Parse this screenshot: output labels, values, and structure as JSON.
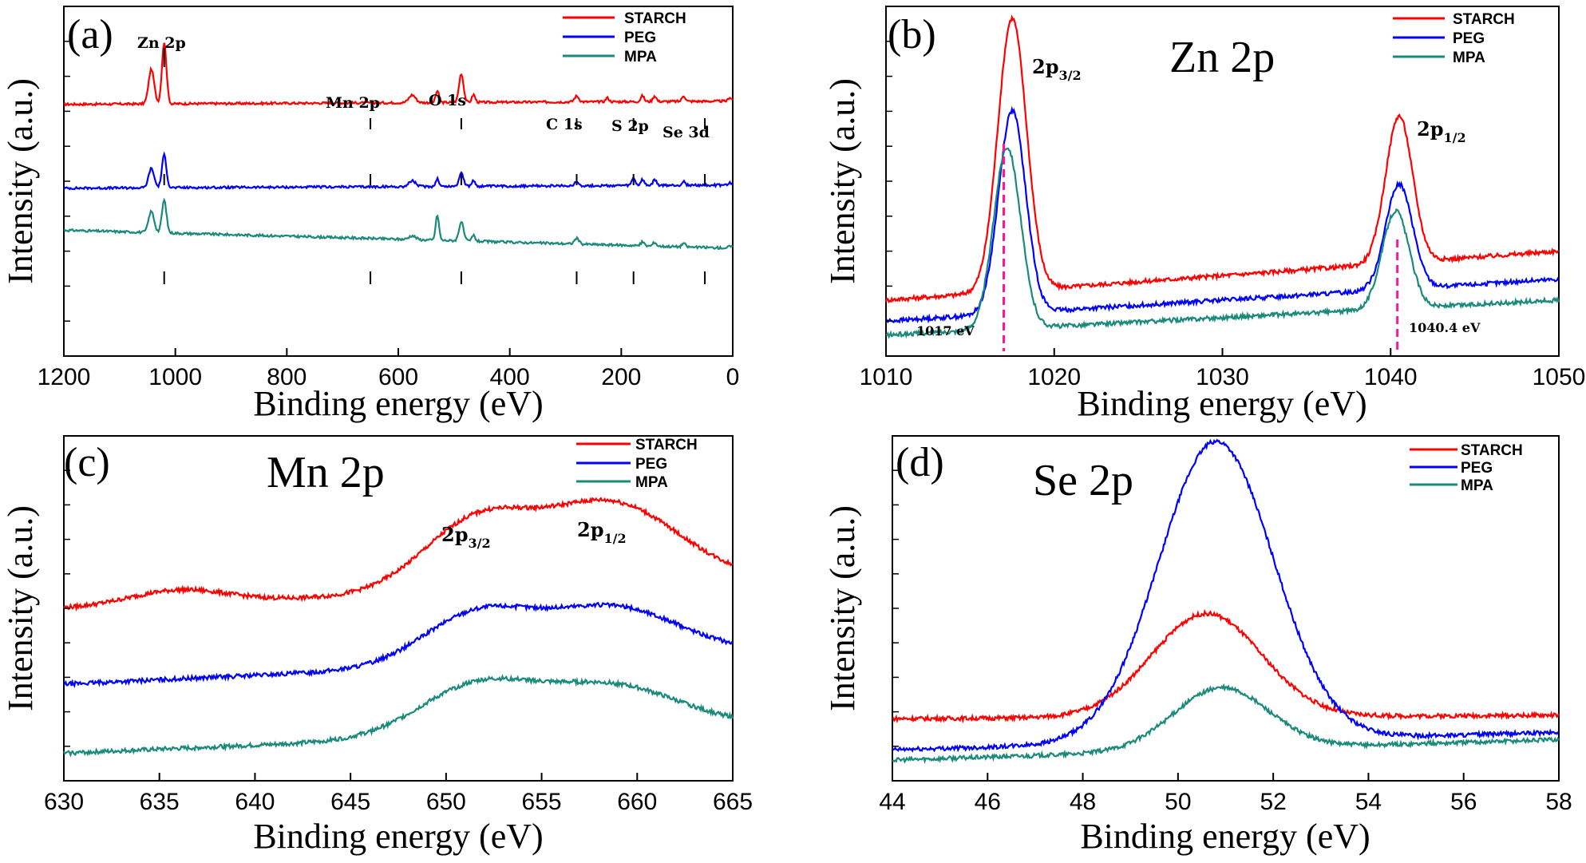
{
  "figure": {
    "panels": [
      "(a)",
      "(b)",
      "(c)",
      "(d)"
    ]
  },
  "chart_data": [
    {
      "type": "line",
      "id": "a",
      "panel_label": "(a)",
      "title": "",
      "xlabel": "Binding energy (eV)",
      "ylabel": "Intensity (a.u.)",
      "xlim": [
        1200,
        0
      ],
      "x_reversed": true,
      "xticks": [
        "1200",
        "1000",
        "800",
        "600",
        "400",
        "200",
        "0"
      ],
      "xtick_values": [
        1200,
        1000,
        800,
        600,
        400,
        200,
        0
      ],
      "legend": [
        "STARCH",
        "PEG",
        "MPA"
      ],
      "annotations": [
        {
          "text": "Zn 2p",
          "x": 1020
        },
        {
          "text": "Mn 2p",
          "x": 650
        },
        {
          "text": "O 1s",
          "x": 495
        },
        {
          "text": "C 1s",
          "x": 285
        },
        {
          "text": "S 2p",
          "x": 180
        },
        {
          "text": "Se 3d",
          "x": 55
        }
      ],
      "marker_positions": [
        1020,
        650,
        487,
        280,
        178,
        50
      ],
      "series": [
        {
          "name": "STARCH",
          "color": "#ff0000",
          "start": 1200,
          "end": 0,
          "baseline_start": 0.66,
          "baseline_end": 0.84,
          "peaks": [
            [
              1043,
              0.18,
              5
            ],
            [
              1020,
              0.32,
              4
            ],
            [
              575,
              0.04,
              6
            ],
            [
              530,
              0.06,
              3
            ],
            [
              487,
              0.15,
              4
            ],
            [
              465,
              0.04,
              3
            ],
            [
              280,
              0.03,
              4
            ],
            [
              225,
              0.02,
              3
            ],
            [
              162,
              0.03,
              3
            ],
            [
              140,
              0.03,
              3
            ],
            [
              88,
              0.03,
              3
            ],
            [
              5,
              0.02,
              3
            ]
          ]
        },
        {
          "name": "PEG",
          "color": "#0000ff",
          "start": 1200,
          "end": 0,
          "baseline_start": 0.66,
          "baseline_end": 0.84,
          "peaks": [
            [
              1043,
              0.1,
              5
            ],
            [
              1020,
              0.17,
              4
            ],
            [
              575,
              0.03,
              6
            ],
            [
              530,
              0.04,
              3
            ],
            [
              487,
              0.07,
              4
            ],
            [
              465,
              0.03,
              3
            ],
            [
              280,
              0.02,
              4
            ],
            [
              178,
              0.04,
              3
            ],
            [
              162,
              0.03,
              3
            ],
            [
              140,
              0.03,
              3
            ],
            [
              88,
              0.02,
              3
            ],
            [
              5,
              0.01,
              3
            ]
          ]
        },
        {
          "name": "MPA",
          "color": "#1a8a7a",
          "start": 1200,
          "end": 0,
          "baseline_start": 0.47,
          "baseline_end": 0.54,
          "peaks": [
            [
              1043,
              0.11,
              5
            ],
            [
              1020,
              0.17,
              4
            ],
            [
              575,
              0.02,
              6
            ],
            [
              530,
              0.13,
              3
            ],
            [
              487,
              0.1,
              4
            ],
            [
              465,
              0.03,
              3
            ],
            [
              280,
              0.03,
              4
            ],
            [
              162,
              0.02,
              3
            ],
            [
              140,
              0.02,
              3
            ],
            [
              88,
              0.02,
              3
            ],
            [
              5,
              0.01,
              3
            ]
          ]
        }
      ],
      "offsets": [
        0.0,
        -0.34,
        -0.5
      ]
    },
    {
      "type": "line",
      "id": "b",
      "panel_label": "(b)",
      "title": "Zn 2p",
      "xlabel": "Binding energy (eV)",
      "ylabel": "Intensity (a.u.)",
      "xlim": [
        1010,
        1050
      ],
      "xticks": [
        "1010",
        "1020",
        "1030",
        "1040",
        "1050"
      ],
      "xtick_values": [
        1010,
        1020,
        1030,
        1040,
        1050
      ],
      "legend": [
        "STARCH",
        "PEG",
        "MPA"
      ],
      "peak_labels": [
        {
          "main": "2p",
          "sub": "3/2",
          "x": 1019
        },
        {
          "main": "2p",
          "sub": "1/2",
          "x": 1041.5
        }
      ],
      "reference_lines": [
        {
          "x": 1017,
          "label": "1017 eV"
        },
        {
          "x": 1040.4,
          "label": "1040.4 eV"
        }
      ],
      "series": [
        {
          "name": "STARCH",
          "color": "#ff0000",
          "start": 1010,
          "end": 1050,
          "baseline_start": 0.16,
          "baseline_end": 0.3,
          "peaks": [
            [
              1017.5,
              0.78,
              0.85
            ],
            [
              1040.5,
              0.42,
              0.8
            ]
          ]
        },
        {
          "name": "PEG",
          "color": "#0000ff",
          "start": 1010,
          "end": 1050,
          "baseline_start": 0.1,
          "baseline_end": 0.22,
          "peaks": [
            [
              1017.5,
              0.58,
              0.8
            ],
            [
              1040.5,
              0.3,
              0.8
            ]
          ]
        },
        {
          "name": "MPA",
          "color": "#1a8a7a",
          "start": 1010,
          "end": 1050,
          "baseline_start": 0.06,
          "baseline_end": 0.16,
          "peaks": [
            [
              1017.2,
              0.52,
              0.8
            ],
            [
              1040.3,
              0.28,
              0.8
            ]
          ]
        }
      ],
      "offsets": [
        0.0,
        0.0,
        0.0
      ]
    },
    {
      "type": "line",
      "id": "c",
      "panel_label": "(c)",
      "title": "Mn 2p",
      "xlabel": "Binding energy (eV)",
      "ylabel": "Intensity (a.u.)",
      "xlim": [
        630,
        665
      ],
      "xticks": [
        "630",
        "635",
        "640",
        "645",
        "650",
        "655",
        "660",
        "665"
      ],
      "xtick_values": [
        630,
        635,
        640,
        645,
        650,
        655,
        660,
        665
      ],
      "legend": [
        "STARCH",
        "PEG",
        "MPA"
      ],
      "peak_labels": [
        {
          "main": "2p",
          "sub": "3/2",
          "x": 651.5
        },
        {
          "main": "2p",
          "sub": "1/2",
          "x": 658
        }
      ],
      "series": [
        {
          "name": "STARCH",
          "color": "#ff0000",
          "start": 630,
          "end": 665,
          "baseline_start": 0.5,
          "baseline_end": 0.58,
          "peaks": [
            [
              636,
              0.04,
              2.5
            ],
            [
              651.5,
              0.19,
              2.8
            ],
            [
              658.5,
              0.24,
              3.6
            ]
          ]
        },
        {
          "name": "PEG",
          "color": "#0000ff",
          "start": 630,
          "end": 665,
          "baseline_start": 0.28,
          "baseline_end": 0.37,
          "peaks": [
            [
              651.5,
              0.14,
              2.8
            ],
            [
              658.5,
              0.15,
              3.6
            ]
          ]
        },
        {
          "name": "MPA",
          "color": "#1a8a7a",
          "start": 630,
          "end": 665,
          "baseline_start": 0.08,
          "baseline_end": 0.16,
          "peaks": [
            [
              651.5,
              0.14,
              3.0
            ],
            [
              658.5,
              0.13,
              3.6
            ]
          ]
        }
      ],
      "offsets": [
        0.0,
        0.0,
        0.0
      ]
    },
    {
      "type": "line",
      "id": "d",
      "panel_label": "(d)",
      "title": "Se 2p",
      "xlabel": "Binding energy (eV)",
      "ylabel": "Intensity (a.u.)",
      "xlim": [
        44,
        58
      ],
      "xticks": [
        "44",
        "46",
        "48",
        "50",
        "52",
        "54",
        "56",
        "58"
      ],
      "xtick_values": [
        44,
        46,
        48,
        50,
        52,
        54,
        56,
        58
      ],
      "legend": [
        "STARCH",
        "PEG",
        "MPA"
      ],
      "series": [
        {
          "name": "STARCH",
          "color": "#ff0000",
          "start": 44,
          "end": 58,
          "baseline_start": 0.18,
          "baseline_end": 0.19,
          "peaks": [
            [
              50.6,
              0.3,
              1.15
            ]
          ]
        },
        {
          "name": "PEG",
          "color": "#0000ff",
          "start": 44,
          "end": 58,
          "baseline_start": 0.09,
          "baseline_end": 0.14,
          "peaks": [
            [
              50.8,
              0.87,
              1.2
            ]
          ]
        },
        {
          "name": "MPA",
          "color": "#1a8a7a",
          "start": 44,
          "end": 58,
          "baseline_start": 0.06,
          "baseline_end": 0.12,
          "peaks": [
            [
              50.9,
              0.18,
              1.0
            ]
          ]
        }
      ],
      "offsets": [
        0.0,
        0.0,
        0.0
      ]
    }
  ]
}
